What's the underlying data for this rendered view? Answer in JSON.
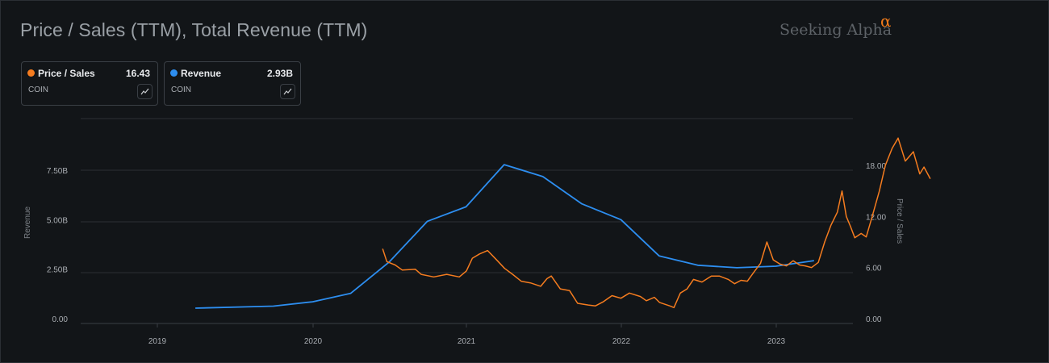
{
  "header": {
    "title": "Price / Sales (TTM), Total Revenue (TTM)",
    "brand_name": "Seeking Alpha",
    "brand_mark": "α"
  },
  "legend_cards": [
    {
      "name": "Price / Sales",
      "value": "16.43",
      "ticker": "COIN",
      "color": "#f57c1f",
      "icon": "sparkline-icon"
    },
    {
      "name": "Revenue",
      "value": "2.93B",
      "ticker": "COIN",
      "color": "#2d8ef0",
      "icon": "sparkline-icon"
    }
  ],
  "chart_data": {
    "type": "line",
    "title": "Price / Sales (TTM), Total Revenue (TTM)",
    "x_ticks": [
      "2019",
      "2020",
      "2021",
      "2022",
      "2023"
    ],
    "left_axis": {
      "label": "Revenue",
      "ticks": [
        "0.00",
        "2.50B",
        "5.00B",
        "7.50B"
      ],
      "range": [
        0,
        10
      ],
      "unit": "B"
    },
    "right_axis": {
      "label": "Price / Sales",
      "ticks": [
        "0.00",
        "6.00",
        "12.00",
        "18.00"
      ],
      "range": [
        0,
        24
      ]
    },
    "grid": true,
    "series": [
      {
        "name": "Revenue",
        "axis": "left",
        "color": "#2d8ef0",
        "points": [
          [
            "2019-03-31",
            0.53
          ],
          [
            "2019-09-30",
            0.63
          ],
          [
            "2019-12-31",
            0.85
          ],
          [
            "2020-03-31",
            1.28
          ],
          [
            "2020-06-30",
            2.85
          ],
          [
            "2020-09-30",
            4.92
          ],
          [
            "2020-12-31",
            5.65
          ],
          [
            "2021-03-31",
            7.78
          ],
          [
            "2021-06-30",
            7.18
          ],
          [
            "2021-09-30",
            5.8
          ],
          [
            "2021-12-31",
            5.0
          ],
          [
            "2022-03-31",
            3.17
          ],
          [
            "2022-06-30",
            2.7
          ],
          [
            "2022-09-30",
            2.57
          ],
          [
            "2022-12-31",
            2.65
          ],
          [
            "2023-03-31",
            2.93
          ]
        ]
      },
      {
        "name": "Price / Sales",
        "axis": "right",
        "color": "#f57c1f",
        "points": [
          [
            "2020-06-15",
            8.2
          ],
          [
            "2020-06-25",
            6.7
          ],
          [
            "2020-07-15",
            6.3
          ],
          [
            "2020-08-01",
            5.7
          ],
          [
            "2020-09-01",
            5.8
          ],
          [
            "2020-09-15",
            5.2
          ],
          [
            "2020-10-15",
            4.9
          ],
          [
            "2020-11-15",
            5.2
          ],
          [
            "2020-12-15",
            4.9
          ],
          [
            "2021-01-01",
            5.6
          ],
          [
            "2021-01-15",
            7.1
          ],
          [
            "2021-02-01",
            7.6
          ],
          [
            "2021-02-20",
            8.0
          ],
          [
            "2021-03-15",
            6.8
          ],
          [
            "2021-04-01",
            5.9
          ],
          [
            "2021-04-20",
            5.2
          ],
          [
            "2021-05-10",
            4.4
          ],
          [
            "2021-06-01",
            4.2
          ],
          [
            "2021-06-25",
            3.8
          ],
          [
            "2021-07-10",
            4.7
          ],
          [
            "2021-07-20",
            5.0
          ],
          [
            "2021-08-10",
            3.5
          ],
          [
            "2021-09-01",
            3.3
          ],
          [
            "2021-09-20",
            1.8
          ],
          [
            "2021-10-15",
            1.6
          ],
          [
            "2021-11-01",
            1.5
          ],
          [
            "2021-11-20",
            2.0
          ],
          [
            "2021-12-10",
            2.7
          ],
          [
            "2021-12-31",
            2.4
          ],
          [
            "2022-01-20",
            3.0
          ],
          [
            "2022-02-15",
            2.6
          ],
          [
            "2022-03-01",
            2.1
          ],
          [
            "2022-03-20",
            2.5
          ],
          [
            "2022-04-01",
            1.9
          ],
          [
            "2022-04-25",
            1.5
          ],
          [
            "2022-05-05",
            1.3
          ],
          [
            "2022-05-20",
            3.0
          ],
          [
            "2022-06-05",
            3.5
          ],
          [
            "2022-06-20",
            4.6
          ],
          [
            "2022-07-10",
            4.3
          ],
          [
            "2022-08-01",
            5.0
          ],
          [
            "2022-08-20",
            5.0
          ],
          [
            "2022-09-10",
            4.6
          ],
          [
            "2022-09-25",
            4.1
          ],
          [
            "2022-10-10",
            4.5
          ],
          [
            "2022-10-25",
            4.4
          ],
          [
            "2022-11-10",
            5.5
          ],
          [
            "2022-11-25",
            6.5
          ],
          [
            "2022-12-10",
            9.0
          ],
          [
            "2022-12-25",
            6.9
          ],
          [
            "2023-01-10",
            6.4
          ],
          [
            "2023-01-25",
            6.2
          ],
          [
            "2023-02-10",
            6.8
          ],
          [
            "2023-02-25",
            6.3
          ],
          [
            "2023-03-10",
            6.2
          ],
          [
            "2023-03-25",
            6.0
          ],
          [
            "2023-04-10",
            6.6
          ],
          [
            "2023-04-25",
            9.0
          ],
          [
            "2023-05-10",
            11.0
          ],
          [
            "2023-05-25",
            12.5
          ],
          [
            "2023-06-05",
            15.0
          ],
          [
            "2023-06-15",
            12.0
          ],
          [
            "2023-06-25",
            10.8
          ],
          [
            "2023-07-05",
            9.5
          ],
          [
            "2023-07-20",
            10.0
          ],
          [
            "2023-08-01",
            9.6
          ],
          [
            "2023-08-15",
            12.0
          ],
          [
            "2023-09-01",
            15.0
          ],
          [
            "2023-09-15",
            18.0
          ],
          [
            "2023-10-01",
            20.0
          ],
          [
            "2023-10-15",
            21.2
          ],
          [
            "2023-11-01",
            18.5
          ],
          [
            "2023-11-20",
            19.6
          ],
          [
            "2023-12-05",
            17.0
          ],
          [
            "2023-12-15",
            17.8
          ],
          [
            "2023-12-30",
            16.43
          ]
        ]
      }
    ]
  }
}
